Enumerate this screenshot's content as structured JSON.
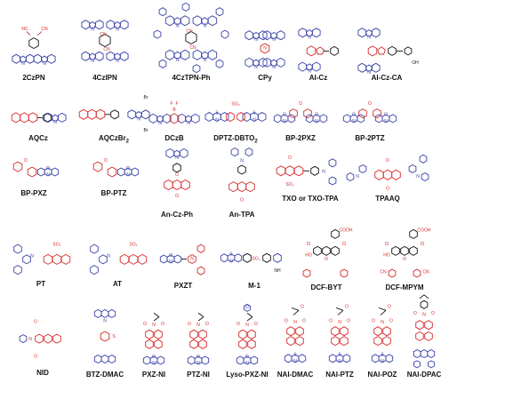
{
  "colors": {
    "donor": "#3a43a8",
    "acceptor": "#d62a2a",
    "bond": "#111111"
  },
  "molecules": [
    {
      "id": "2czpn",
      "label": "2CzPN",
      "accent": "donor",
      "motif": "cz-pn",
      "subs": [
        "NC",
        "CN"
      ]
    },
    {
      "id": "4czipn",
      "label": "4CzIPN",
      "accent": "donor",
      "motif": "cz4",
      "subs": [
        "CN",
        "CN"
      ]
    },
    {
      "id": "4cztpn-ph",
      "label": "4CzTPN-Ph",
      "accent": "donor",
      "motif": "cz4big",
      "subs": [
        "CN",
        "CN"
      ]
    },
    {
      "id": "cpy",
      "label": "CPy",
      "accent": "donor",
      "motif": "cpy",
      "subs": []
    },
    {
      "id": "ai-cz",
      "label": "AI-Cz",
      "accent": "acceptor",
      "motif": "aicz",
      "subs": []
    },
    {
      "id": "ai-cz-ca",
      "label": "AI-Cz-CA",
      "accent": "acceptor",
      "motif": "aiczca",
      "subs": [
        "OH"
      ]
    },
    {
      "id": "aqcz",
      "label": "AQCz",
      "accent": "acceptor",
      "motif": "aq-cz",
      "subs": []
    },
    {
      "id": "aqczbr2",
      "label": "AQCzBr",
      "label_sub": "2",
      "accent": "acceptor",
      "motif": "aq-czbr",
      "subs": [
        "Br",
        "Br"
      ]
    },
    {
      "id": "dczb",
      "label": "DCzB",
      "accent": "acceptor",
      "motif": "dczb",
      "subs": [
        "F",
        "F"
      ]
    },
    {
      "id": "dptz-dbto2",
      "label": "DPTZ-DBTO",
      "label_sub": "2",
      "accent": "acceptor",
      "motif": "dptz",
      "subs": []
    },
    {
      "id": "bp-2pxz",
      "label": "BP-2PXZ",
      "accent": "acceptor",
      "motif": "bp2",
      "subs": []
    },
    {
      "id": "bp-2ptz",
      "label": "BP-2PTZ",
      "accent": "acceptor",
      "motif": "bp2",
      "subs": []
    },
    {
      "id": "bp-pxz",
      "label": "BP-PXZ",
      "accent": "acceptor",
      "motif": "bp1",
      "subs": []
    },
    {
      "id": "bp-ptz",
      "label": "BP-PTZ",
      "accent": "acceptor",
      "motif": "bp1",
      "subs": []
    },
    {
      "id": "an-cz-ph",
      "label": "An-Cz-Ph",
      "accent": "acceptor",
      "motif": "an-cz",
      "subs": []
    },
    {
      "id": "an-tpa",
      "label": "An-TPA",
      "accent": "acceptor",
      "motif": "an-tpa",
      "subs": []
    },
    {
      "id": "txo-tpa",
      "label": "TXO  or  TXO-TPA",
      "accent": "acceptor",
      "motif": "txo",
      "subs": []
    },
    {
      "id": "tpaaq",
      "label": "TPAAQ",
      "accent": "acceptor",
      "motif": "tpaaq",
      "subs": []
    },
    {
      "id": "pt",
      "label": "PT",
      "accent": "acceptor",
      "motif": "pt",
      "subs": []
    },
    {
      "id": "at",
      "label": "AT",
      "accent": "acceptor",
      "motif": "at",
      "subs": []
    },
    {
      "id": "pxzt",
      "label": "PXZT",
      "accent": "acceptor",
      "motif": "pxzt",
      "subs": []
    },
    {
      "id": "m-1",
      "label": "M-1",
      "accent": "acceptor",
      "motif": "m1",
      "subs": []
    },
    {
      "id": "dcf-byt",
      "label": "DCF-BYT",
      "accent": "acceptor",
      "motif": "dcf",
      "subs": [
        "COOH",
        "Cl",
        "Cl",
        "HO",
        "O"
      ]
    },
    {
      "id": "dcf-mpym",
      "label": "DCF-MPYM",
      "accent": "acceptor",
      "motif": "dcfm",
      "subs": [
        "COOH",
        "Cl",
        "Cl",
        "HO",
        "O"
      ]
    },
    {
      "id": "nid",
      "label": "NID",
      "accent": "acceptor",
      "motif": "nid",
      "subs": []
    },
    {
      "id": "btz-dmac",
      "label": "BTZ-DMAC",
      "accent": "acceptor",
      "motif": "btz",
      "subs": []
    },
    {
      "id": "pxz-ni",
      "label": "PXZ-NI",
      "accent": "acceptor",
      "motif": "ni",
      "subs": []
    },
    {
      "id": "ptz-ni",
      "label": "PTZ-NI",
      "accent": "acceptor",
      "motif": "ni",
      "subs": []
    },
    {
      "id": "lyso-pxz-ni",
      "label": "Lyso-PXZ-NI",
      "accent": "acceptor",
      "motif": "ni-lyso",
      "subs": []
    },
    {
      "id": "nai-dmac",
      "label": "NAI-DMAC",
      "accent": "acceptor",
      "motif": "nai",
      "subs": []
    },
    {
      "id": "nai-ptz",
      "label": "NAI-PTZ",
      "accent": "acceptor",
      "motif": "nai",
      "subs": []
    },
    {
      "id": "nai-poz",
      "label": "NAI-POZ",
      "accent": "acceptor",
      "motif": "nai",
      "subs": []
    },
    {
      "id": "nai-dpac",
      "label": "NAI-DPAC",
      "accent": "acceptor",
      "motif": "naidpac",
      "subs": []
    }
  ]
}
